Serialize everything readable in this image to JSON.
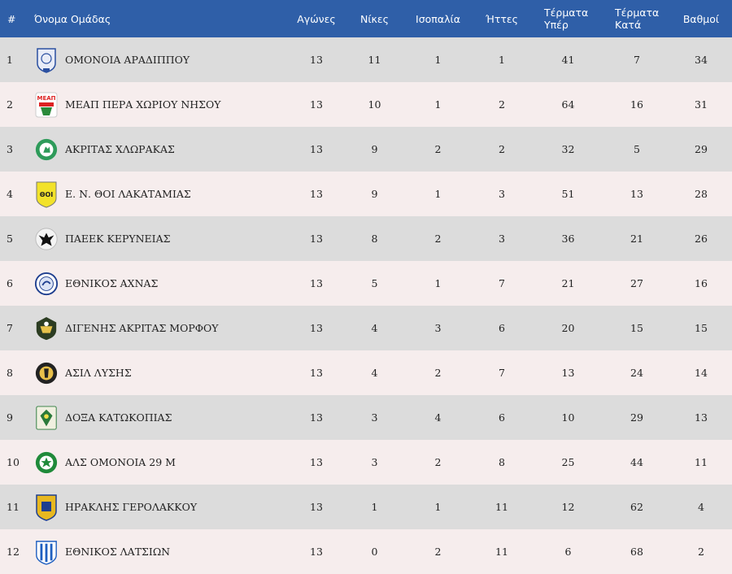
{
  "columns": {
    "pos": "#",
    "team": "Όνομα Ομάδας",
    "played": "Αγώνες",
    "wins": "Νίκες",
    "draws": "Ισοπαλία",
    "losses": "Ήττες",
    "gf_line1": "Τέρματα",
    "gf_line2": "Υπέρ",
    "ga_line1": "Τέρματα",
    "ga_line2": "Κατά",
    "points": "Βαθμοί"
  },
  "colors": {
    "header_bg": "#2f5fa8",
    "row_odd": "#dcdcdc",
    "row_even": "#f6eded"
  },
  "rows": [
    {
      "pos": "1",
      "team": "ΟΜΟΝΟΙΑ ΑΡΑΔΙΠΠΟΥ",
      "logo": "omonia-aradippou-crest-icon",
      "played": "13",
      "wins": "11",
      "draws": "1",
      "losses": "1",
      "gf": "41",
      "ga": "7",
      "points": "34"
    },
    {
      "pos": "2",
      "team": "ΜΕΑΠ ΠΕΡΑ ΧΩΡΙΟΥ ΝΗΣΟΥ",
      "logo": "meap-crest-icon",
      "logo_text": "ΜΕΑΠ",
      "played": "13",
      "wins": "10",
      "draws": "1",
      "losses": "2",
      "gf": "64",
      "ga": "16",
      "points": "31"
    },
    {
      "pos": "3",
      "team": "ΑΚΡΙΤΑΣ ΧΛΩΡΑΚΑΣ",
      "logo": "akritas-chlorakas-crest-icon",
      "played": "13",
      "wins": "9",
      "draws": "2",
      "losses": "2",
      "gf": "32",
      "ga": "5",
      "points": "29"
    },
    {
      "pos": "4",
      "team": "Ε. Ν. ΘΟΙ ΛΑΚΑΤΑΜΙΑΣ",
      "logo": "thoi-lakatamias-crest-icon",
      "logo_text": "ΘΟΙ",
      "played": "13",
      "wins": "9",
      "draws": "1",
      "losses": "3",
      "gf": "51",
      "ga": "13",
      "points": "28"
    },
    {
      "pos": "5",
      "team": "ΠΑΕΕΚ ΚΕΡΥΝΕΙΑΣ",
      "logo": "paeek-eagle-crest-icon",
      "played": "13",
      "wins": "8",
      "draws": "2",
      "losses": "3",
      "gf": "36",
      "ga": "21",
      "points": "26"
    },
    {
      "pos": "6",
      "team": "ΕΘΝΙΚΟΣ ΑΧΝΑΣ",
      "logo": "ethnikos-achnas-crest-icon",
      "played": "13",
      "wins": "5",
      "draws": "1",
      "losses": "7",
      "gf": "21",
      "ga": "27",
      "points": "16"
    },
    {
      "pos": "7",
      "team": "ΔΙΓΕΝΗΣ ΑΚΡΙΤΑΣ ΜΟΡΦΟΥ",
      "logo": "digenis-morfou-crest-icon",
      "played": "13",
      "wins": "4",
      "draws": "3",
      "losses": "6",
      "gf": "20",
      "ga": "15",
      "points": "15"
    },
    {
      "pos": "8",
      "team": "ΑΣΙΛ ΛΥΣΗΣ",
      "logo": "asil-lysis-crest-icon",
      "played": "13",
      "wins": "4",
      "draws": "2",
      "losses": "7",
      "gf": "13",
      "ga": "24",
      "points": "14"
    },
    {
      "pos": "9",
      "team": "ΔΟΞΑ ΚΑΤΩΚΟΠΙΑΣ",
      "logo": "doxa-katokopias-crest-icon",
      "played": "13",
      "wins": "3",
      "draws": "4",
      "losses": "6",
      "gf": "10",
      "ga": "29",
      "points": "13"
    },
    {
      "pos": "10",
      "team": "ΑΛΣ ΟΜΟΝΟΙΑ 29 Μ",
      "logo": "omonia-29m-crest-icon",
      "played": "13",
      "wins": "3",
      "draws": "2",
      "losses": "8",
      "gf": "25",
      "ga": "44",
      "points": "11"
    },
    {
      "pos": "11",
      "team": "ΗΡΑΚΛΗΣ ΓΕΡΟΛΑΚΚΟΥ",
      "logo": "iraklis-gerolakkou-crest-icon",
      "played": "13",
      "wins": "1",
      "draws": "1",
      "losses": "11",
      "gf": "12",
      "ga": "62",
      "points": "4"
    },
    {
      "pos": "12",
      "team": "ΕΘΝΙΚΟΣ ΛΑΤΣΙΩΝ",
      "logo": "ethnikos-latsion-crest-icon",
      "played": "13",
      "wins": "0",
      "draws": "2",
      "losses": "11",
      "gf": "6",
      "ga": "68",
      "points": "2"
    }
  ]
}
